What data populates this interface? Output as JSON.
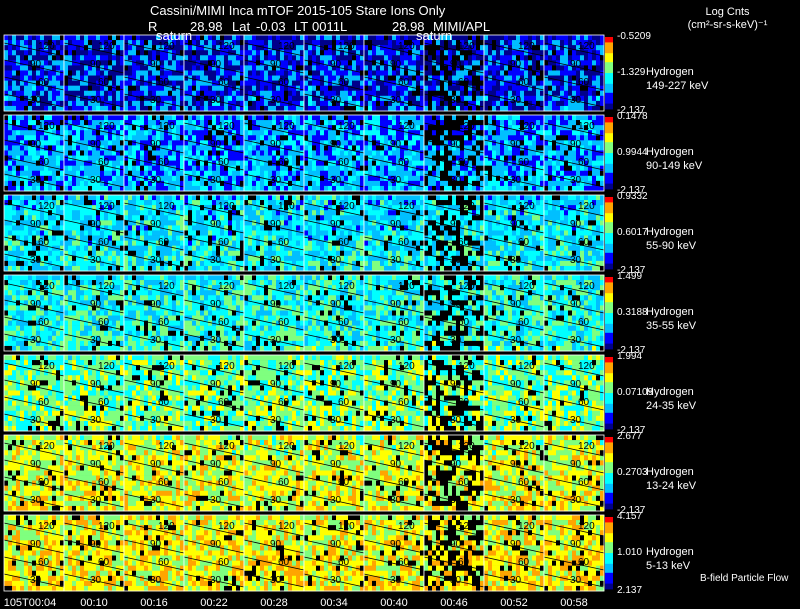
{
  "header": {
    "title": "Cassini/MIMI Inca mTOF  2015-105    Stare    Ions Only",
    "r_label": "R",
    "r_value": "28.98",
    "lat_label": "Lat",
    "lat_value": "-0.03",
    "lt_label": "LT",
    "lt_value": "0011",
    "l_label": "L",
    "l_value": "28.98",
    "credit": "MIMI/APL",
    "saturn_marker": "saturn",
    "units_line1": "Log Cnts",
    "units_line2": "(cm²-sr-s-keV)⁻¹"
  },
  "chart_data": {
    "type": "heatmap",
    "title": "Cassini/MIMI Inca mTOF 2015-105 Stare Ions Only",
    "x_times": [
      "105T00:04",
      "00:10",
      "00:16",
      "00:22",
      "00:28",
      "00:34",
      "00:40",
      "00:46",
      "00:52",
      "00:58"
    ],
    "contour_labels": [
      "120",
      "90",
      "60",
      "30"
    ],
    "colormap": [
      "#00008b",
      "#0000ff",
      "#00bfff",
      "#00ffff",
      "#7fff7f",
      "#ffff00",
      "#ffa500",
      "#ff0000"
    ],
    "saturn_frames": [
      1,
      6
    ],
    "rows": [
      {
        "species": "Hydrogen",
        "energy": "149-227 keV",
        "cmax": "-0.5209",
        "cmid": "-1.329",
        "cmin": "-2.137",
        "level": 0.18
      },
      {
        "species": "Hydrogen",
        "energy": "90-149 keV",
        "cmax": "0.1478",
        "cmid": "0.9944",
        "cmin": "-2.137",
        "level": 0.28
      },
      {
        "species": "Hydrogen",
        "energy": "55-90 keV",
        "cmax": "0.9332",
        "cmid": "0.6017",
        "cmin": "-2.137",
        "level": 0.38
      },
      {
        "species": "Hydrogen",
        "energy": "35-55 keV",
        "cmax": "1.499",
        "cmid": "0.3188",
        "cmin": "-2.137",
        "level": 0.45
      },
      {
        "species": "Hydrogen",
        "energy": "24-35 keV",
        "cmax": "1.994",
        "cmid": "0.07109",
        "cmin": "-2.137",
        "level": 0.56
      },
      {
        "species": "Hydrogen",
        "energy": "13-24 keV",
        "cmax": "2.677",
        "cmid": "0.2703",
        "cmin": "-2.137",
        "level": 0.68
      },
      {
        "species": "Hydrogen",
        "energy": "5-13 keV",
        "cmax": "4.157",
        "cmid": "1.010",
        "cmin": "2.137",
        "level": 0.72
      }
    ],
    "footer_note": "B-field Particle Flow"
  }
}
